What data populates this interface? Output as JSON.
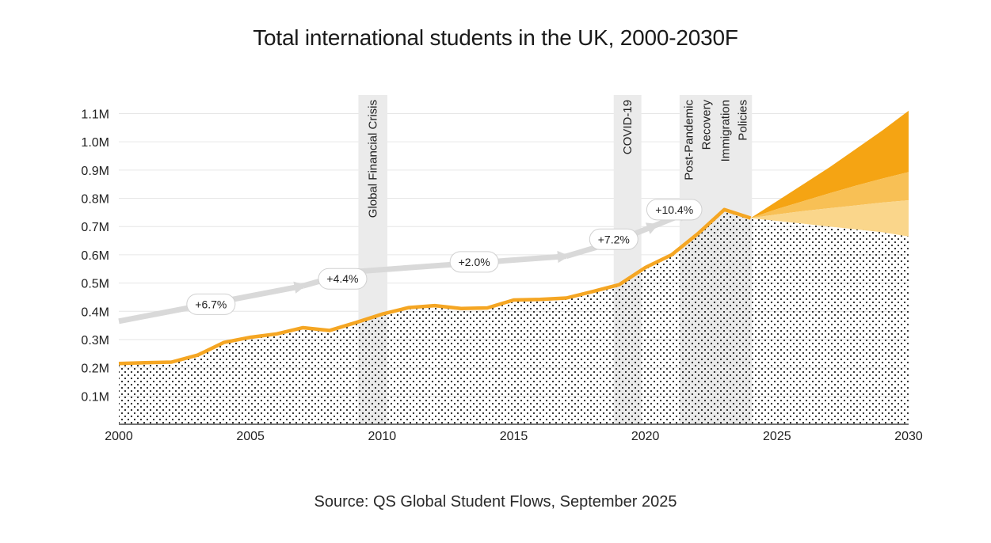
{
  "title": "Total international students in the UK, 2000-2030F",
  "source": "Source: QS Global Student Flows, September 2025",
  "colors": {
    "actual_line": "#F5A623",
    "forecast_high": "#F5A413",
    "forecast_mid": "#F8C055",
    "forecast_low": "#FAD68B",
    "trend_arrow": "#D9D9D9",
    "event_band": "#EBEBEB",
    "grid": "#E6E6E6",
    "dots": "#222222"
  },
  "chart_data": {
    "type": "area",
    "title": "Total international students in the UK, 2000-2030F",
    "xlabel": "",
    "ylabel": "",
    "xlim": [
      2000,
      2030
    ],
    "ylim": [
      0,
      1.1
    ],
    "grid": true,
    "x_ticks": [
      2000,
      2005,
      2010,
      2015,
      2020,
      2025,
      2030
    ],
    "y_ticks": [
      {
        "value": 0.1,
        "label": "0.1M"
      },
      {
        "value": 0.2,
        "label": "0.2M"
      },
      {
        "value": 0.3,
        "label": "0.3M"
      },
      {
        "value": 0.4,
        "label": "0.4M"
      },
      {
        "value": 0.5,
        "label": "0.5M"
      },
      {
        "value": 0.6,
        "label": "0.6M"
      },
      {
        "value": 0.7,
        "label": "0.7M"
      },
      {
        "value": 0.8,
        "label": "0.8M"
      },
      {
        "value": 0.9,
        "label": "0.9M"
      },
      {
        "value": 1.0,
        "label": "1.0M"
      },
      {
        "value": 1.1,
        "label": "1.1M"
      }
    ],
    "actual": {
      "x": [
        2000,
        2001,
        2002,
        2003,
        2004,
        2005,
        2006,
        2007,
        2008,
        2009,
        2010,
        2011,
        2012,
        2013,
        2014,
        2015,
        2016,
        2017,
        2018,
        2019,
        2020,
        2021,
        2022,
        2023,
        2024
      ],
      "y": [
        0.215,
        0.218,
        0.22,
        0.245,
        0.29,
        0.308,
        0.32,
        0.342,
        0.332,
        0.36,
        0.39,
        0.413,
        0.42,
        0.41,
        0.412,
        0.44,
        0.442,
        0.447,
        0.47,
        0.494,
        0.555,
        0.6,
        0.675,
        0.76,
        0.73
      ]
    },
    "forecast": {
      "x": [
        2024,
        2025,
        2026,
        2027,
        2028,
        2029,
        2030
      ],
      "low": [
        0.73,
        0.72,
        0.71,
        0.7,
        0.69,
        0.68,
        0.665
      ],
      "mid": [
        0.73,
        0.743,
        0.755,
        0.765,
        0.775,
        0.785,
        0.793
      ],
      "high_inner": [
        0.73,
        0.762,
        0.79,
        0.818,
        0.845,
        0.87,
        0.893
      ],
      "high": [
        0.73,
        0.79,
        0.85,
        0.91,
        0.975,
        1.04,
        1.11
      ]
    },
    "trend": {
      "x": [
        2000,
        2007,
        2008.9,
        2017,
        2018.8,
        2020.4,
        2021.6
      ],
      "y": [
        0.365,
        0.49,
        0.54,
        0.595,
        0.645,
        0.705,
        0.75
      ],
      "labels": [
        {
          "text": "+6.7%",
          "x": 2003.5,
          "y": 0.425
        },
        {
          "text": "+4.4%",
          "x": 2008.5,
          "y": 0.515
        },
        {
          "text": "+2.0%",
          "x": 2013.5,
          "y": 0.575
        },
        {
          "text": "+7.2%",
          "x": 2018.8,
          "y": 0.655
        },
        {
          "text": "+10.4%",
          "x": 2021.1,
          "y": 0.76
        }
      ]
    },
    "event_bands": [
      {
        "start": 2009.1,
        "end": 2010.2,
        "lines": [
          "Global Financial Crisis"
        ]
      },
      {
        "start": 2018.8,
        "end": 2019.85,
        "lines": [
          "COVID-19"
        ]
      },
      {
        "start": 2021.3,
        "end": 2024.05,
        "lines": [
          "Post-Pandemic",
          "Recovery",
          "Immigration",
          "Policies"
        ]
      }
    ]
  }
}
